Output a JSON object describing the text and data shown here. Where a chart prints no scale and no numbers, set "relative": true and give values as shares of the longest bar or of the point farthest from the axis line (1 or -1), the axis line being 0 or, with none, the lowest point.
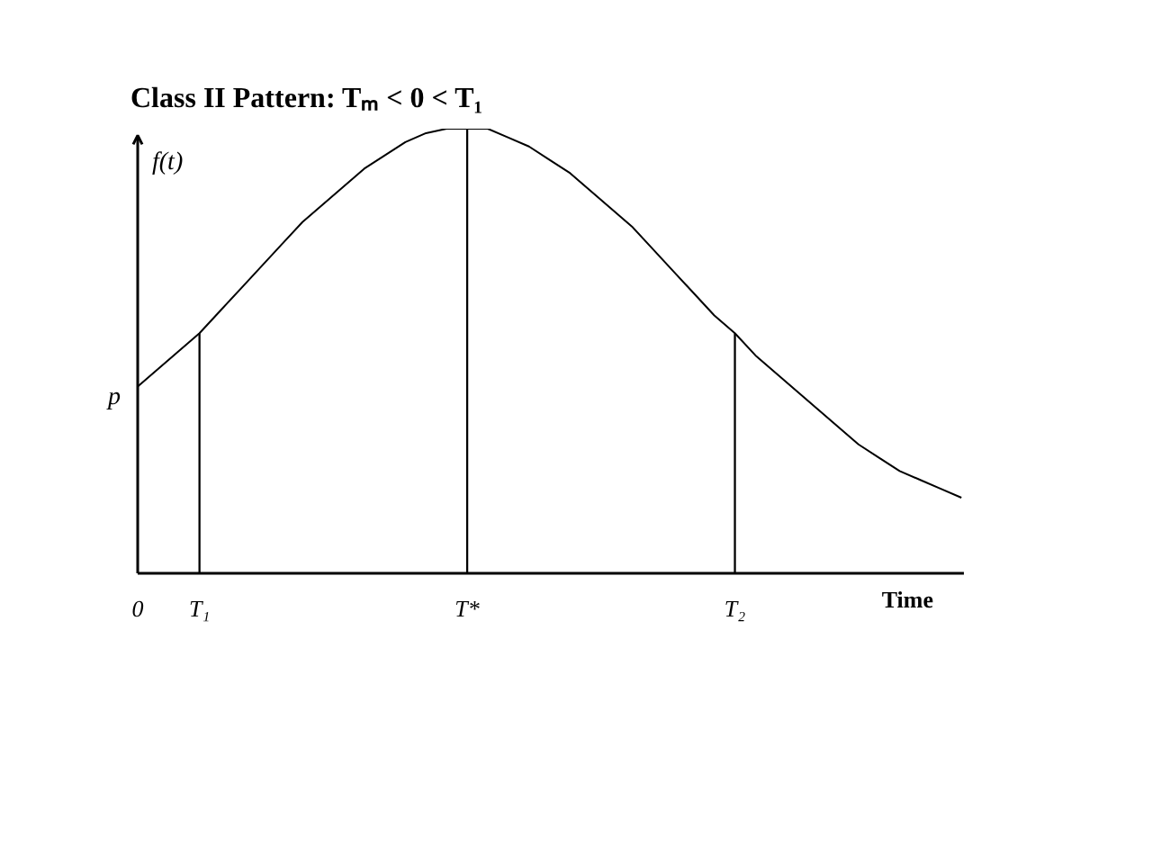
{
  "chart_data": {
    "type": "line",
    "title": "Class II Pattern: Tₘ < 0 < T₁",
    "xlabel": "Time",
    "ylabel": "f(t)",
    "relative": true,
    "categories": [
      "0",
      null,
      null,
      "T₁",
      null,
      null,
      null,
      null,
      null,
      null,
      null,
      null,
      null,
      null,
      null,
      null,
      "T*",
      null,
      null,
      null,
      null,
      null,
      null,
      null,
      null,
      null,
      null,
      null,
      null,
      "T₂",
      null,
      null,
      null,
      null,
      null,
      null,
      null,
      null,
      null,
      null,
      null
    ],
    "series": [
      {
        "color": "#000000",
        "values": [
          0.42,
          0.46,
          0.5,
          0.54,
          0.59,
          0.64,
          0.69,
          0.74,
          0.79,
          0.83,
          0.87,
          0.91,
          0.94,
          0.97,
          0.99,
          1.0,
          1.0,
          1.0,
          0.98,
          0.96,
          0.93,
          0.9,
          0.86,
          0.82,
          0.78,
          0.73,
          0.68,
          0.63,
          0.58,
          0.54,
          0.49,
          0.45,
          0.41,
          0.37,
          0.33,
          0.29,
          0.26,
          0.23,
          0.21,
          0.19,
          0.17
        ]
      },
      {
        "type": "bar",
        "color": "#000000",
        "values": [
          null,
          null,
          null,
          0.54,
          null,
          null,
          null,
          null,
          null,
          null,
          null,
          null,
          null,
          null,
          null,
          null,
          1.0,
          null,
          null,
          null,
          null,
          null,
          null,
          null,
          null,
          null,
          null,
          null,
          null,
          0.54,
          null,
          null,
          null,
          null,
          null,
          null,
          null,
          null,
          null,
          null,
          null
        ]
      }
    ],
    "annotations": [
      {
        "text": "p",
        "x": "0",
        "y": 0.42
      }
    ]
  }
}
